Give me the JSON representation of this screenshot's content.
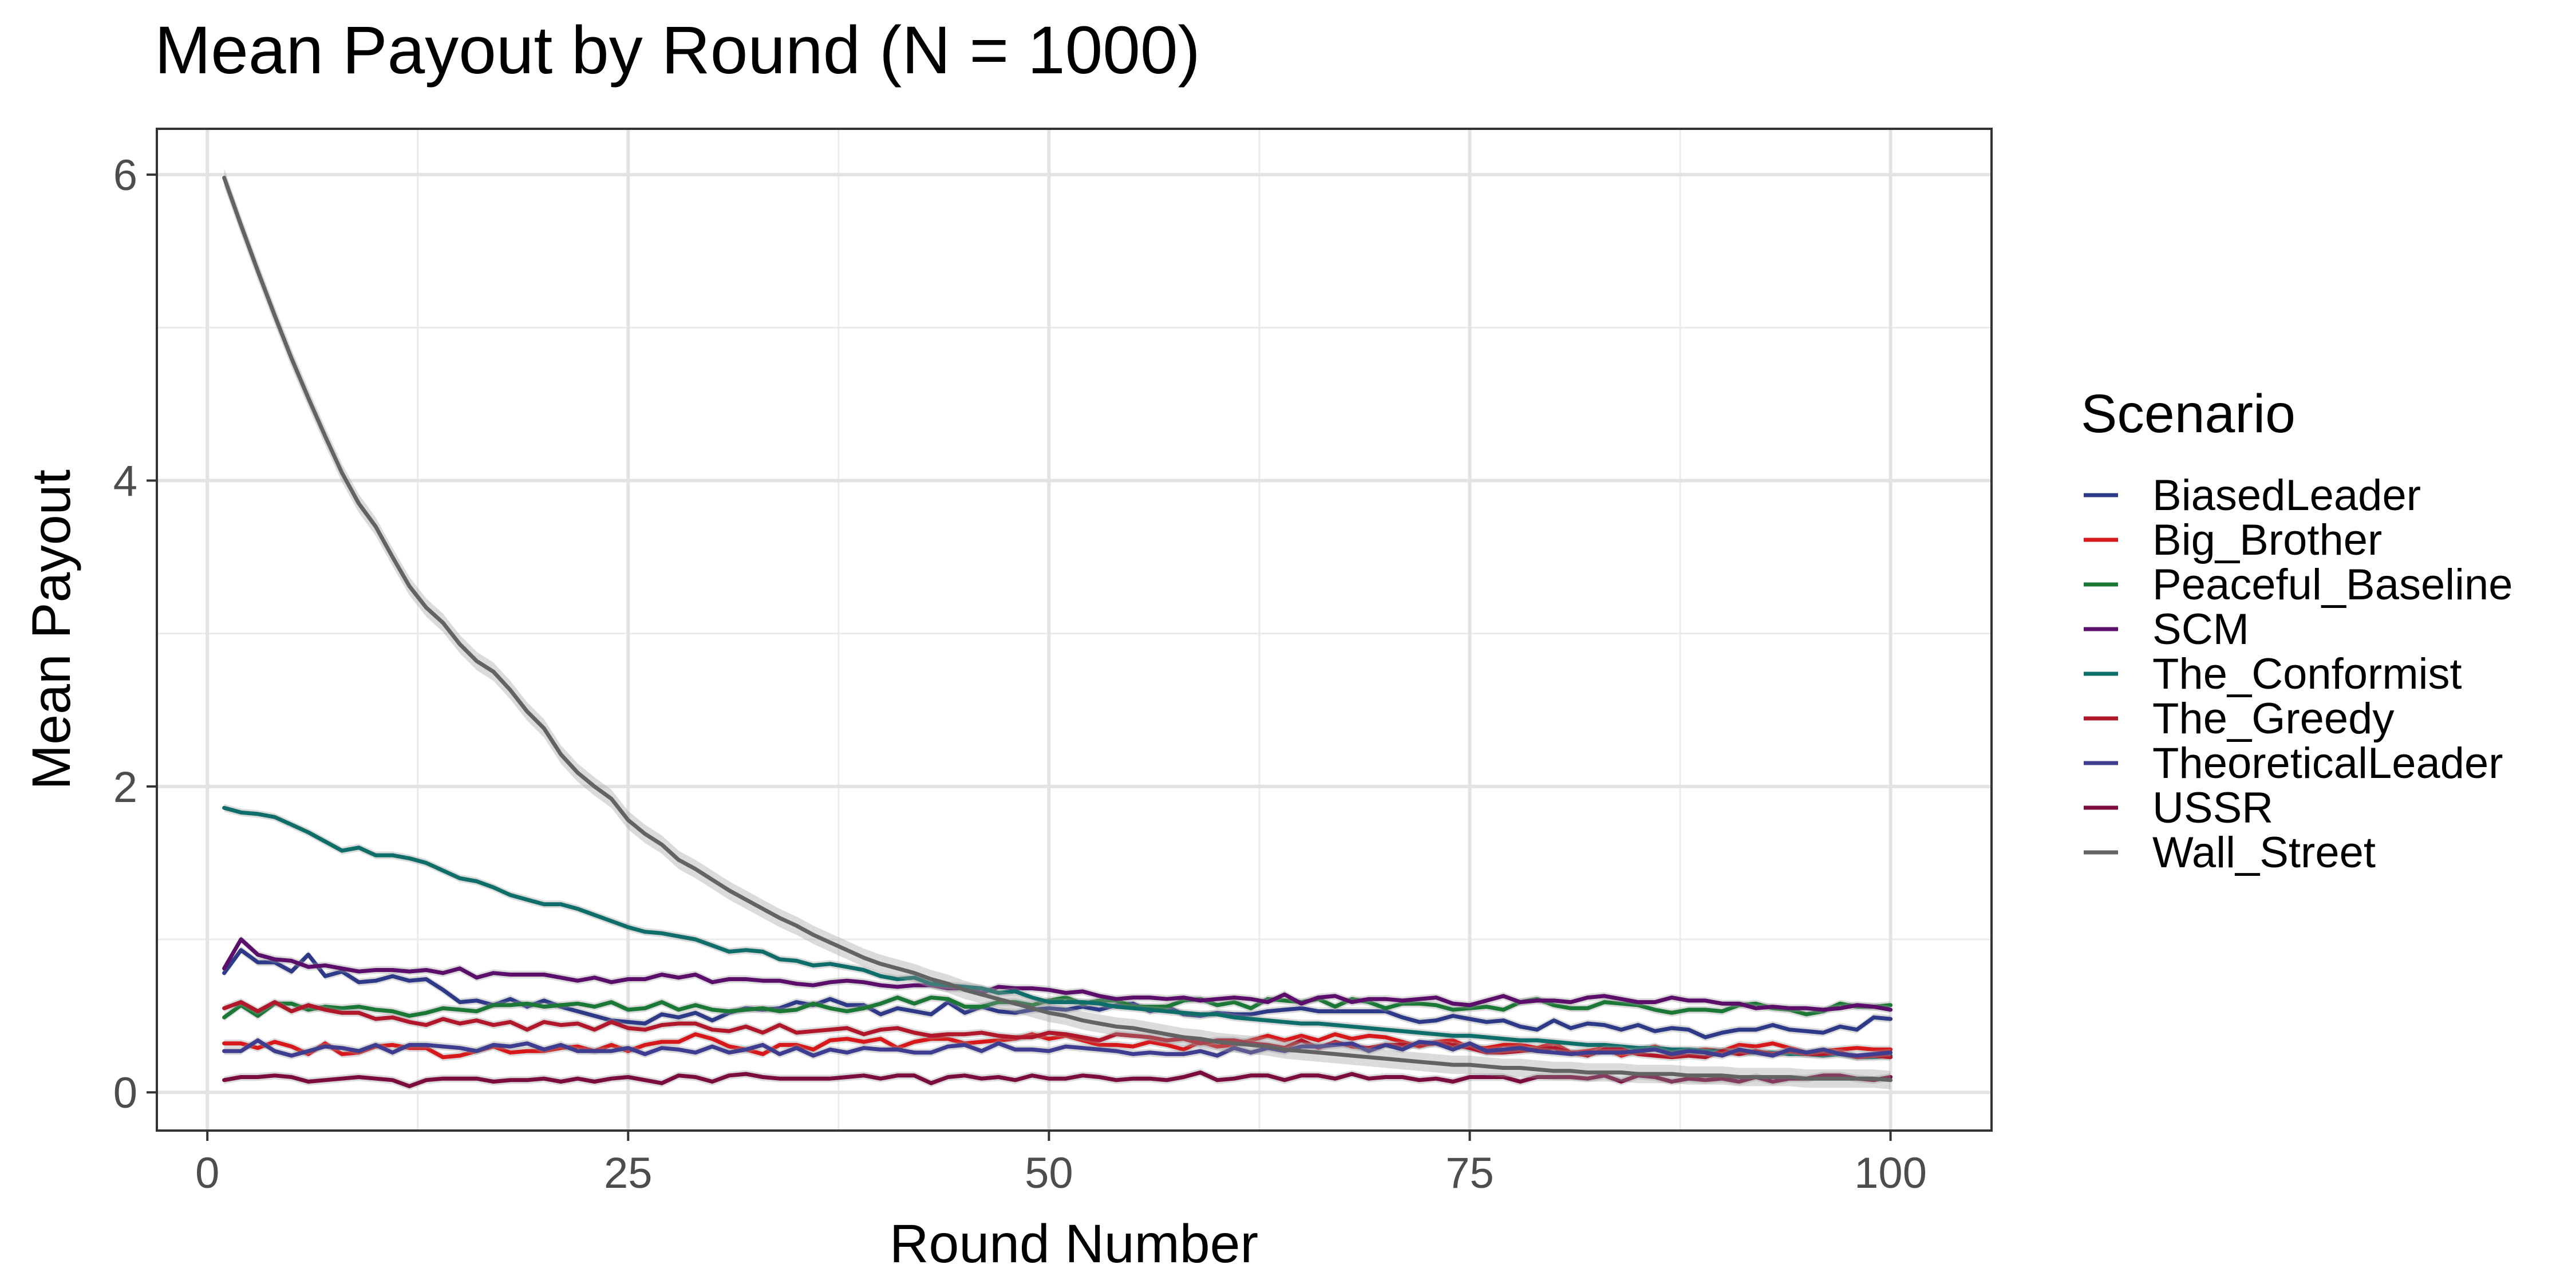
{
  "chart_data": {
    "type": "line",
    "title": "Mean Payout by Round (N = 1000)",
    "xlabel": "Round Number",
    "ylabel": "Mean Payout",
    "xlim": [
      -3,
      106
    ],
    "ylim": [
      -0.25,
      6.3
    ],
    "x_ticks": [
      0,
      25,
      50,
      75,
      100
    ],
    "y_ticks": [
      0,
      2,
      4,
      6
    ],
    "grid": true,
    "confidence_band": true,
    "legend": {
      "title": "Scenario",
      "placement": "right"
    },
    "x": [
      1,
      2,
      3,
      4,
      5,
      6,
      7,
      8,
      9,
      10,
      11,
      12,
      13,
      14,
      15,
      16,
      17,
      18,
      19,
      20,
      21,
      22,
      23,
      24,
      25,
      26,
      27,
      28,
      29,
      30,
      31,
      32,
      33,
      34,
      35,
      36,
      37,
      38,
      39,
      40,
      41,
      42,
      43,
      44,
      45,
      46,
      47,
      48,
      49,
      50,
      51,
      52,
      53,
      54,
      55,
      56,
      57,
      58,
      59,
      60,
      61,
      62,
      63,
      64,
      65,
      66,
      67,
      68,
      69,
      70,
      71,
      72,
      73,
      74,
      75,
      76,
      77,
      78,
      79,
      80,
      81,
      82,
      83,
      84,
      85,
      86,
      87,
      88,
      89,
      90,
      91,
      92,
      93,
      94,
      95,
      96,
      97,
      98,
      99,
      100
    ],
    "series": [
      {
        "name": "BiasedLeader",
        "color": "#2E3A87",
        "values": [
          0.78,
          0.93,
          0.85,
          0.85,
          0.79,
          0.9,
          0.76,
          0.79,
          0.72,
          0.73,
          0.76,
          0.73,
          0.74,
          0.67,
          0.59,
          0.6,
          0.57,
          0.61,
          0.56,
          0.6,
          0.56,
          0.53,
          0.5,
          0.47,
          0.46,
          0.45,
          0.51,
          0.49,
          0.52,
          0.47,
          0.52,
          0.55,
          0.54,
          0.55,
          0.59,
          0.57,
          0.61,
          0.57,
          0.57,
          0.51,
          0.55,
          0.53,
          0.51,
          0.59,
          0.52,
          0.56,
          0.53,
          0.52,
          0.54,
          0.55,
          0.54,
          0.56,
          0.54,
          0.57,
          0.58,
          0.53,
          0.56,
          0.51,
          0.5,
          0.52,
          0.51,
          0.51,
          0.53,
          0.54,
          0.55,
          0.53,
          0.53,
          0.53,
          0.53,
          0.53,
          0.49,
          0.46,
          0.47,
          0.5,
          0.48,
          0.46,
          0.47,
          0.43,
          0.41,
          0.47,
          0.42,
          0.45,
          0.44,
          0.41,
          0.44,
          0.4,
          0.42,
          0.41,
          0.36,
          0.39,
          0.41,
          0.41,
          0.44,
          0.41,
          0.4,
          0.39,
          0.43,
          0.41,
          0.49,
          0.48
        ]
      },
      {
        "name": "Big_Brother",
        "color": "#D7191C",
        "values": [
          0.32,
          0.32,
          0.29,
          0.33,
          0.3,
          0.25,
          0.32,
          0.25,
          0.26,
          0.3,
          0.31,
          0.29,
          0.29,
          0.23,
          0.24,
          0.27,
          0.3,
          0.26,
          0.27,
          0.27,
          0.29,
          0.3,
          0.27,
          0.31,
          0.27,
          0.31,
          0.33,
          0.33,
          0.38,
          0.35,
          0.3,
          0.28,
          0.25,
          0.31,
          0.31,
          0.28,
          0.34,
          0.35,
          0.33,
          0.35,
          0.29,
          0.33,
          0.35,
          0.35,
          0.32,
          0.33,
          0.34,
          0.35,
          0.38,
          0.35,
          0.37,
          0.34,
          0.31,
          0.31,
          0.3,
          0.33,
          0.31,
          0.28,
          0.33,
          0.3,
          0.31,
          0.34,
          0.37,
          0.34,
          0.37,
          0.34,
          0.38,
          0.35,
          0.37,
          0.36,
          0.33,
          0.3,
          0.33,
          0.34,
          0.29,
          0.29,
          0.31,
          0.31,
          0.29,
          0.32,
          0.26,
          0.27,
          0.29,
          0.24,
          0.27,
          0.3,
          0.26,
          0.27,
          0.28,
          0.27,
          0.31,
          0.3,
          0.32,
          0.29,
          0.26,
          0.27,
          0.28,
          0.29,
          0.28,
          0.28
        ]
      },
      {
        "name": "Peaceful_Baseline",
        "color": "#1B7837",
        "values": [
          0.49,
          0.57,
          0.5,
          0.58,
          0.58,
          0.54,
          0.56,
          0.55,
          0.56,
          0.54,
          0.53,
          0.5,
          0.52,
          0.55,
          0.54,
          0.53,
          0.57,
          0.57,
          0.58,
          0.56,
          0.57,
          0.58,
          0.56,
          0.59,
          0.54,
          0.55,
          0.59,
          0.54,
          0.57,
          0.54,
          0.53,
          0.54,
          0.55,
          0.53,
          0.54,
          0.58,
          0.55,
          0.53,
          0.55,
          0.58,
          0.62,
          0.58,
          0.62,
          0.61,
          0.56,
          0.56,
          0.59,
          0.59,
          0.57,
          0.6,
          0.62,
          0.58,
          0.6,
          0.6,
          0.56,
          0.56,
          0.56,
          0.6,
          0.61,
          0.57,
          0.59,
          0.55,
          0.61,
          0.6,
          0.59,
          0.61,
          0.56,
          0.61,
          0.59,
          0.55,
          0.58,
          0.58,
          0.57,
          0.54,
          0.55,
          0.56,
          0.54,
          0.59,
          0.61,
          0.57,
          0.55,
          0.55,
          0.59,
          0.58,
          0.57,
          0.54,
          0.52,
          0.54,
          0.54,
          0.53,
          0.57,
          0.58,
          0.55,
          0.54,
          0.51,
          0.53,
          0.58,
          0.56,
          0.56,
          0.57
        ]
      },
      {
        "name": "SCM",
        "color": "#5B0F6B",
        "values": [
          0.81,
          1.0,
          0.9,
          0.87,
          0.86,
          0.82,
          0.83,
          0.81,
          0.79,
          0.8,
          0.8,
          0.79,
          0.8,
          0.78,
          0.81,
          0.75,
          0.78,
          0.77,
          0.77,
          0.77,
          0.75,
          0.73,
          0.75,
          0.72,
          0.74,
          0.74,
          0.77,
          0.75,
          0.77,
          0.72,
          0.74,
          0.74,
          0.73,
          0.73,
          0.71,
          0.7,
          0.72,
          0.73,
          0.72,
          0.7,
          0.69,
          0.7,
          0.7,
          0.68,
          0.68,
          0.65,
          0.69,
          0.68,
          0.68,
          0.67,
          0.65,
          0.66,
          0.63,
          0.61,
          0.62,
          0.62,
          0.61,
          0.62,
          0.6,
          0.61,
          0.62,
          0.61,
          0.59,
          0.64,
          0.58,
          0.62,
          0.63,
          0.59,
          0.61,
          0.61,
          0.6,
          0.61,
          0.62,
          0.58,
          0.57,
          0.6,
          0.63,
          0.59,
          0.6,
          0.6,
          0.59,
          0.62,
          0.63,
          0.61,
          0.59,
          0.59,
          0.62,
          0.6,
          0.6,
          0.58,
          0.58,
          0.55,
          0.56,
          0.55,
          0.55,
          0.54,
          0.55,
          0.57,
          0.56,
          0.54
        ]
      },
      {
        "name": "The_Conformist",
        "color": "#0F6E6A",
        "values": [
          1.86,
          1.83,
          1.82,
          1.8,
          1.75,
          1.7,
          1.64,
          1.58,
          1.6,
          1.55,
          1.55,
          1.53,
          1.5,
          1.45,
          1.4,
          1.38,
          1.34,
          1.29,
          1.26,
          1.23,
          1.23,
          1.2,
          1.16,
          1.12,
          1.08,
          1.05,
          1.04,
          1.02,
          1.0,
          0.96,
          0.92,
          0.93,
          0.92,
          0.87,
          0.86,
          0.83,
          0.84,
          0.82,
          0.8,
          0.76,
          0.74,
          0.75,
          0.71,
          0.7,
          0.69,
          0.68,
          0.65,
          0.66,
          0.62,
          0.59,
          0.59,
          0.59,
          0.58,
          0.56,
          0.55,
          0.54,
          0.53,
          0.52,
          0.51,
          0.51,
          0.49,
          0.48,
          0.47,
          0.46,
          0.45,
          0.45,
          0.44,
          0.43,
          0.42,
          0.41,
          0.4,
          0.39,
          0.38,
          0.37,
          0.37,
          0.36,
          0.35,
          0.34,
          0.34,
          0.33,
          0.32,
          0.31,
          0.31,
          0.3,
          0.29,
          0.29,
          0.28,
          0.28,
          0.27,
          0.27,
          0.26,
          0.26,
          0.26,
          0.25,
          0.25,
          0.24,
          0.25,
          0.23,
          0.23,
          0.24
        ]
      },
      {
        "name": "The_Greedy",
        "color": "#B2182B",
        "values": [
          0.55,
          0.59,
          0.53,
          0.59,
          0.53,
          0.57,
          0.54,
          0.52,
          0.52,
          0.48,
          0.49,
          0.46,
          0.44,
          0.48,
          0.45,
          0.47,
          0.44,
          0.46,
          0.41,
          0.46,
          0.44,
          0.45,
          0.41,
          0.46,
          0.42,
          0.41,
          0.44,
          0.45,
          0.45,
          0.41,
          0.4,
          0.43,
          0.39,
          0.44,
          0.39,
          0.4,
          0.41,
          0.42,
          0.38,
          0.41,
          0.42,
          0.39,
          0.37,
          0.38,
          0.38,
          0.39,
          0.37,
          0.36,
          0.36,
          0.39,
          0.38,
          0.36,
          0.34,
          0.38,
          0.37,
          0.36,
          0.34,
          0.35,
          0.32,
          0.34,
          0.34,
          0.32,
          0.31,
          0.29,
          0.34,
          0.29,
          0.33,
          0.3,
          0.29,
          0.31,
          0.31,
          0.31,
          0.32,
          0.31,
          0.29,
          0.26,
          0.26,
          0.27,
          0.28,
          0.29,
          0.26,
          0.24,
          0.28,
          0.28,
          0.25,
          0.24,
          0.23,
          0.24,
          0.23,
          0.27,
          0.25,
          0.27,
          0.25,
          0.27,
          0.25,
          0.25,
          0.26,
          0.23,
          0.24,
          0.23
        ]
      },
      {
        "name": "TheoreticalLeader",
        "color": "#3F3D8F",
        "values": [
          0.27,
          0.27,
          0.34,
          0.27,
          0.24,
          0.27,
          0.3,
          0.29,
          0.27,
          0.31,
          0.26,
          0.31,
          0.31,
          0.3,
          0.29,
          0.27,
          0.31,
          0.3,
          0.32,
          0.28,
          0.31,
          0.27,
          0.27,
          0.27,
          0.29,
          0.25,
          0.29,
          0.28,
          0.26,
          0.3,
          0.26,
          0.28,
          0.31,
          0.25,
          0.29,
          0.24,
          0.28,
          0.26,
          0.29,
          0.28,
          0.28,
          0.26,
          0.26,
          0.3,
          0.31,
          0.27,
          0.32,
          0.28,
          0.28,
          0.27,
          0.3,
          0.29,
          0.28,
          0.27,
          0.25,
          0.26,
          0.25,
          0.25,
          0.27,
          0.24,
          0.29,
          0.26,
          0.29,
          0.27,
          0.3,
          0.3,
          0.31,
          0.32,
          0.27,
          0.31,
          0.28,
          0.33,
          0.32,
          0.28,
          0.32,
          0.27,
          0.28,
          0.29,
          0.27,
          0.26,
          0.25,
          0.26,
          0.26,
          0.26,
          0.27,
          0.28,
          0.25,
          0.27,
          0.26,
          0.24,
          0.28,
          0.26,
          0.24,
          0.28,
          0.26,
          0.28,
          0.25,
          0.24,
          0.25,
          0.26
        ]
      },
      {
        "name": "USSR",
        "color": "#7A0C3E",
        "values": [
          0.08,
          0.1,
          0.1,
          0.11,
          0.1,
          0.07,
          0.08,
          0.09,
          0.1,
          0.09,
          0.08,
          0.04,
          0.08,
          0.09,
          0.09,
          0.09,
          0.07,
          0.08,
          0.08,
          0.09,
          0.07,
          0.09,
          0.07,
          0.09,
          0.1,
          0.08,
          0.06,
          0.11,
          0.1,
          0.07,
          0.11,
          0.12,
          0.1,
          0.09,
          0.09,
          0.09,
          0.09,
          0.1,
          0.11,
          0.09,
          0.11,
          0.11,
          0.06,
          0.1,
          0.11,
          0.09,
          0.1,
          0.08,
          0.11,
          0.09,
          0.09,
          0.11,
          0.1,
          0.08,
          0.09,
          0.09,
          0.08,
          0.1,
          0.13,
          0.08,
          0.09,
          0.11,
          0.11,
          0.08,
          0.11,
          0.11,
          0.09,
          0.12,
          0.09,
          0.1,
          0.1,
          0.08,
          0.09,
          0.07,
          0.1,
          0.1,
          0.1,
          0.07,
          0.1,
          0.1,
          0.1,
          0.09,
          0.11,
          0.07,
          0.11,
          0.1,
          0.07,
          0.09,
          0.08,
          0.09,
          0.07,
          0.1,
          0.07,
          0.09,
          0.09,
          0.11,
          0.11,
          0.09,
          0.08,
          0.1
        ]
      },
      {
        "name": "Wall_Street",
        "color": "#636363",
        "values": [
          5.98,
          5.67,
          5.37,
          5.08,
          4.8,
          4.54,
          4.29,
          4.05,
          3.85,
          3.7,
          3.5,
          3.31,
          3.17,
          3.07,
          2.93,
          2.82,
          2.75,
          2.63,
          2.49,
          2.38,
          2.21,
          2.09,
          2.0,
          1.92,
          1.78,
          1.69,
          1.62,
          1.52,
          1.46,
          1.39,
          1.32,
          1.26,
          1.2,
          1.14,
          1.09,
          1.03,
          0.98,
          0.93,
          0.88,
          0.84,
          0.81,
          0.78,
          0.74,
          0.71,
          0.67,
          0.64,
          0.61,
          0.58,
          0.55,
          0.52,
          0.5,
          0.47,
          0.45,
          0.43,
          0.42,
          0.4,
          0.38,
          0.36,
          0.35,
          0.33,
          0.32,
          0.31,
          0.3,
          0.28,
          0.27,
          0.26,
          0.25,
          0.24,
          0.23,
          0.22,
          0.21,
          0.2,
          0.19,
          0.18,
          0.18,
          0.17,
          0.16,
          0.16,
          0.15,
          0.14,
          0.14,
          0.13,
          0.13,
          0.13,
          0.12,
          0.12,
          0.12,
          0.11,
          0.11,
          0.11,
          0.1,
          0.1,
          0.1,
          0.1,
          0.09,
          0.09,
          0.09,
          0.09,
          0.09,
          0.08
        ]
      }
    ]
  }
}
